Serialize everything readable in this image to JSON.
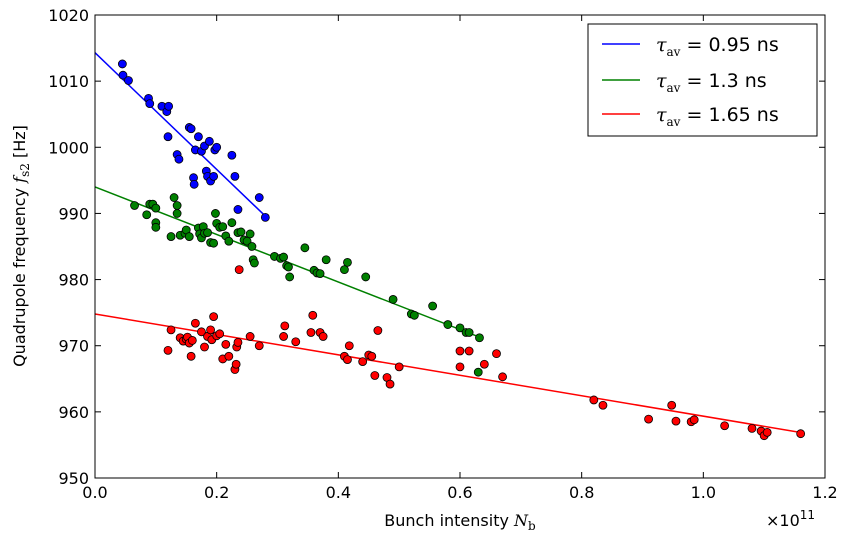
{
  "chart_data": {
    "type": "scatter",
    "title": "",
    "xlabel": "Bunch intensity",
    "xlabel_symbol": "N",
    "xlabel_symbol_sub": "b",
    "ylabel": "Quadrupole frequency",
    "ylabel_symbol": "f",
    "ylabel_symbol_sub": "s2",
    "ylabel_unit": "[Hz]",
    "x_multiplier_base": "×10",
    "x_multiplier_exp": "11",
    "xlim": [
      0.0,
      1.2
    ],
    "ylim": [
      950,
      1020
    ],
    "x_ticks": [
      "0.0",
      "0.2",
      "0.4",
      "0.6",
      "0.8",
      "1.0",
      "1.2"
    ],
    "y_ticks": [
      "950",
      "960",
      "970",
      "980",
      "990",
      "1000",
      "1010",
      "1020"
    ],
    "legend_position": "top-right",
    "grid": false,
    "series": [
      {
        "name": "τav = 0.95 ns",
        "name_symbol": "τ",
        "name_sub": "av",
        "name_eq": " = ",
        "name_value": "0.95 ns",
        "color": "#0000ff",
        "fit": {
          "x": [
            0.0,
            0.28
          ],
          "y": [
            1014.3,
            989.6
          ]
        },
        "points": [
          [
            0.045,
            1012.6
          ],
          [
            0.046,
            1010.9
          ],
          [
            0.055,
            1010.1
          ],
          [
            0.088,
            1007.4
          ],
          [
            0.09,
            1006.6
          ],
          [
            0.11,
            1006.2
          ],
          [
            0.118,
            1005.4
          ],
          [
            0.121,
            1006.2
          ],
          [
            0.12,
            1001.6
          ],
          [
            0.135,
            998.9
          ],
          [
            0.138,
            998.2
          ],
          [
            0.155,
            1003.0
          ],
          [
            0.158,
            1002.8
          ],
          [
            0.165,
            999.6
          ],
          [
            0.162,
            995.4
          ],
          [
            0.163,
            994.4
          ],
          [
            0.17,
            1001.6
          ],
          [
            0.175,
            999.4
          ],
          [
            0.18,
            1000.2
          ],
          [
            0.183,
            996.4
          ],
          [
            0.185,
            995.6
          ],
          [
            0.188,
            1000.9
          ],
          [
            0.19,
            994.9
          ],
          [
            0.195,
            995.6
          ],
          [
            0.197,
            999.6
          ],
          [
            0.2,
            1000.0
          ],
          [
            0.225,
            998.8
          ],
          [
            0.23,
            995.6
          ],
          [
            0.235,
            990.6
          ],
          [
            0.27,
            992.4
          ],
          [
            0.28,
            989.4
          ]
        ]
      },
      {
        "name": "τav = 1.3 ns",
        "name_symbol": "τ",
        "name_sub": "av",
        "name_eq": " = ",
        "name_value": "1.3 ns",
        "color": "#008000",
        "fit": {
          "x": [
            0.0,
            0.635
          ],
          "y": [
            994.0,
            971.2
          ]
        },
        "points": [
          [
            0.065,
            991.2
          ],
          [
            0.085,
            989.8
          ],
          [
            0.09,
            991.4
          ],
          [
            0.095,
            991.4
          ],
          [
            0.1,
            990.8
          ],
          [
            0.1,
            988.6
          ],
          [
            0.1,
            987.9
          ],
          [
            0.125,
            986.5
          ],
          [
            0.13,
            992.4
          ],
          [
            0.135,
            990.0
          ],
          [
            0.135,
            991.2
          ],
          [
            0.14,
            986.7
          ],
          [
            0.148,
            987.0
          ],
          [
            0.15,
            987.5
          ],
          [
            0.155,
            986.5
          ],
          [
            0.17,
            987.8
          ],
          [
            0.172,
            986.9
          ],
          [
            0.175,
            986.3
          ],
          [
            0.178,
            988.0
          ],
          [
            0.18,
            987.0
          ],
          [
            0.185,
            987.1
          ],
          [
            0.19,
            985.6
          ],
          [
            0.195,
            985.5
          ],
          [
            0.198,
            990.0
          ],
          [
            0.2,
            988.5
          ],
          [
            0.205,
            987.9
          ],
          [
            0.21,
            988.0
          ],
          [
            0.215,
            986.6
          ],
          [
            0.22,
            985.8
          ],
          [
            0.225,
            988.6
          ],
          [
            0.235,
            987.1
          ],
          [
            0.24,
            987.2
          ],
          [
            0.245,
            986.0
          ],
          [
            0.25,
            985.8
          ],
          [
            0.255,
            986.9
          ],
          [
            0.258,
            985.0
          ],
          [
            0.26,
            983.0
          ],
          [
            0.262,
            982.5
          ],
          [
            0.295,
            983.5
          ],
          [
            0.305,
            983.2
          ],
          [
            0.31,
            983.4
          ],
          [
            0.315,
            982.1
          ],
          [
            0.318,
            981.9
          ],
          [
            0.32,
            980.4
          ],
          [
            0.345,
            984.8
          ],
          [
            0.36,
            981.4
          ],
          [
            0.365,
            981.0
          ],
          [
            0.37,
            980.9
          ],
          [
            0.38,
            983.0
          ],
          [
            0.41,
            981.5
          ],
          [
            0.415,
            982.6
          ],
          [
            0.445,
            980.4
          ],
          [
            0.49,
            977.0
          ],
          [
            0.52,
            974.8
          ],
          [
            0.525,
            974.6
          ],
          [
            0.555,
            976.0
          ],
          [
            0.58,
            973.2
          ],
          [
            0.6,
            972.7
          ],
          [
            0.61,
            972.0
          ],
          [
            0.615,
            972.0
          ],
          [
            0.63,
            966.0
          ],
          [
            0.632,
            971.2
          ]
        ]
      },
      {
        "name": "τav = 1.65 ns",
        "name_symbol": "τ",
        "name_sub": "av",
        "name_eq": " = ",
        "name_value": "1.65 ns",
        "color": "#ff0000",
        "fit": {
          "x": [
            0.0,
            1.165
          ],
          "y": [
            974.8,
            956.8
          ]
        },
        "points": [
          [
            0.12,
            969.3
          ],
          [
            0.125,
            972.4
          ],
          [
            0.14,
            971.2
          ],
          [
            0.145,
            970.7
          ],
          [
            0.15,
            971.0
          ],
          [
            0.152,
            971.3
          ],
          [
            0.155,
            970.4
          ],
          [
            0.158,
            968.4
          ],
          [
            0.16,
            970.8
          ],
          [
            0.165,
            973.4
          ],
          [
            0.175,
            972.1
          ],
          [
            0.18,
            969.8
          ],
          [
            0.185,
            971.4
          ],
          [
            0.19,
            972.4
          ],
          [
            0.192,
            970.9
          ],
          [
            0.195,
            974.4
          ],
          [
            0.2,
            971.5
          ],
          [
            0.205,
            971.8
          ],
          [
            0.21,
            968.0
          ],
          [
            0.215,
            970.2
          ],
          [
            0.22,
            968.4
          ],
          [
            0.23,
            966.4
          ],
          [
            0.232,
            967.2
          ],
          [
            0.233,
            969.8
          ],
          [
            0.235,
            970.5
          ],
          [
            0.237,
            981.5
          ],
          [
            0.255,
            971.4
          ],
          [
            0.27,
            970.0
          ],
          [
            0.31,
            971.4
          ],
          [
            0.312,
            973.0
          ],
          [
            0.33,
            970.6
          ],
          [
            0.355,
            972.0
          ],
          [
            0.358,
            974.6
          ],
          [
            0.37,
            972.0
          ],
          [
            0.375,
            971.4
          ],
          [
            0.41,
            968.4
          ],
          [
            0.415,
            967.9
          ],
          [
            0.418,
            970.0
          ],
          [
            0.44,
            967.6
          ],
          [
            0.45,
            968.6
          ],
          [
            0.455,
            968.4
          ],
          [
            0.46,
            965.5
          ],
          [
            0.465,
            972.3
          ],
          [
            0.48,
            965.2
          ],
          [
            0.485,
            964.2
          ],
          [
            0.5,
            966.8
          ],
          [
            0.6,
            969.2
          ],
          [
            0.6,
            966.8
          ],
          [
            0.615,
            969.2
          ],
          [
            0.64,
            967.2
          ],
          [
            0.66,
            968.8
          ],
          [
            0.67,
            965.3
          ],
          [
            0.82,
            961.8
          ],
          [
            0.835,
            961.0
          ],
          [
            0.91,
            958.9
          ],
          [
            0.948,
            961.0
          ],
          [
            0.955,
            958.6
          ],
          [
            0.98,
            958.5
          ],
          [
            0.985,
            958.8
          ],
          [
            1.035,
            957.9
          ],
          [
            1.08,
            957.5
          ],
          [
            1.095,
            957.1
          ],
          [
            1.1,
            956.4
          ],
          [
            1.105,
            956.9
          ],
          [
            1.16,
            956.7
          ]
        ]
      }
    ]
  }
}
